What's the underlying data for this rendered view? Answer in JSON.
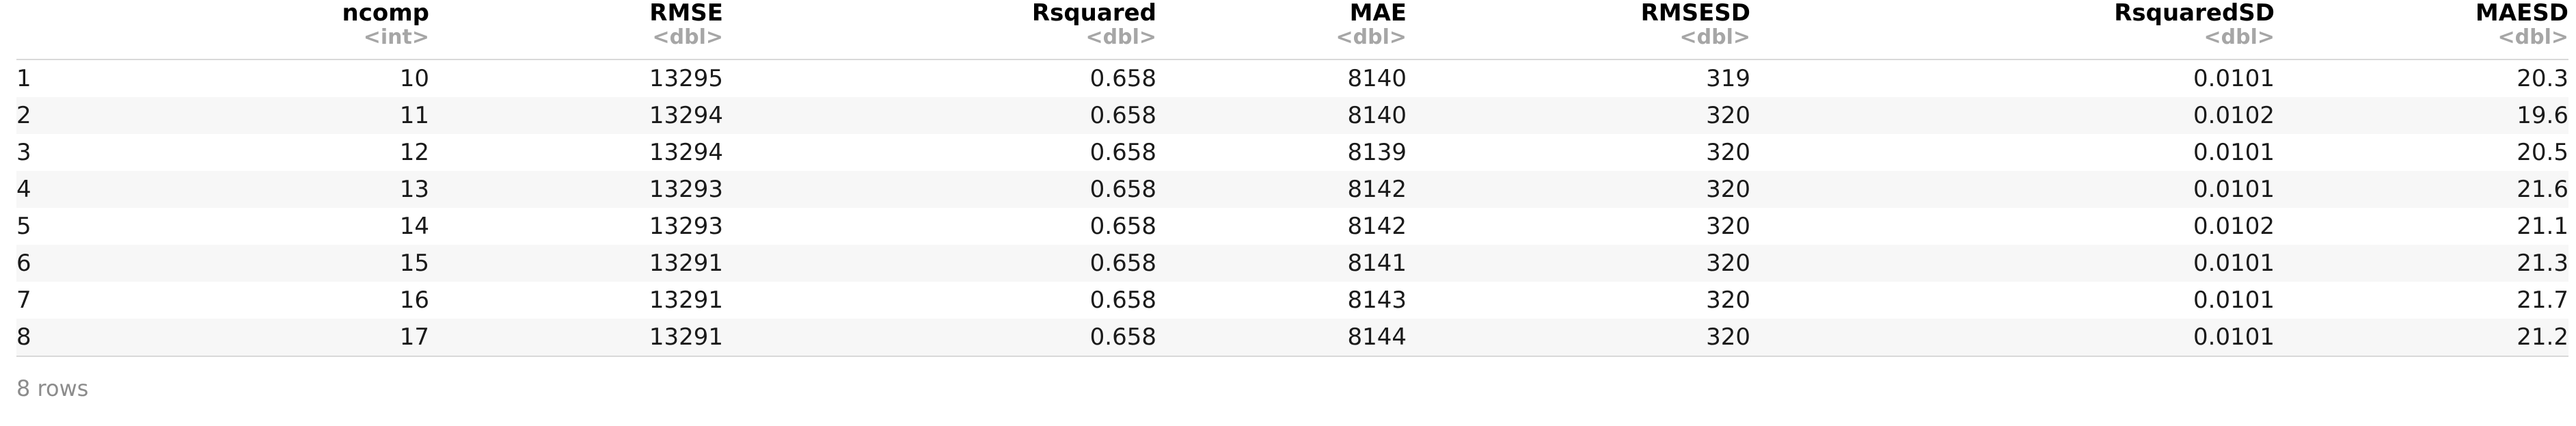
{
  "table": {
    "columns": [
      {
        "name": "",
        "type": ""
      },
      {
        "name": "ncomp",
        "type": "<int>"
      },
      {
        "name": "RMSE",
        "type": "<dbl>"
      },
      {
        "name": "Rsquared",
        "type": "<dbl>"
      },
      {
        "name": "MAE",
        "type": "<dbl>"
      },
      {
        "name": "RMSESD",
        "type": "<dbl>"
      },
      {
        "name": "RsquaredSD",
        "type": "<dbl>"
      },
      {
        "name": "MAESD",
        "type": "<dbl>"
      }
    ],
    "rows": [
      [
        "1",
        "10",
        "13295",
        "0.658",
        "8140",
        "319",
        "0.0101",
        "20.3"
      ],
      [
        "2",
        "11",
        "13294",
        "0.658",
        "8140",
        "320",
        "0.0102",
        "19.6"
      ],
      [
        "3",
        "12",
        "13294",
        "0.658",
        "8139",
        "320",
        "0.0101",
        "20.5"
      ],
      [
        "4",
        "13",
        "13293",
        "0.658",
        "8142",
        "320",
        "0.0101",
        "21.6"
      ],
      [
        "5",
        "14",
        "13293",
        "0.658",
        "8142",
        "320",
        "0.0102",
        "21.1"
      ],
      [
        "6",
        "15",
        "13291",
        "0.658",
        "8141",
        "320",
        "0.0101",
        "21.3"
      ],
      [
        "7",
        "16",
        "13291",
        "0.658",
        "8143",
        "320",
        "0.0101",
        "21.7"
      ],
      [
        "8",
        "17",
        "13291",
        "0.658",
        "8144",
        "320",
        "0.0101",
        "21.2"
      ]
    ]
  },
  "footer": {
    "row_count": "8 rows"
  }
}
